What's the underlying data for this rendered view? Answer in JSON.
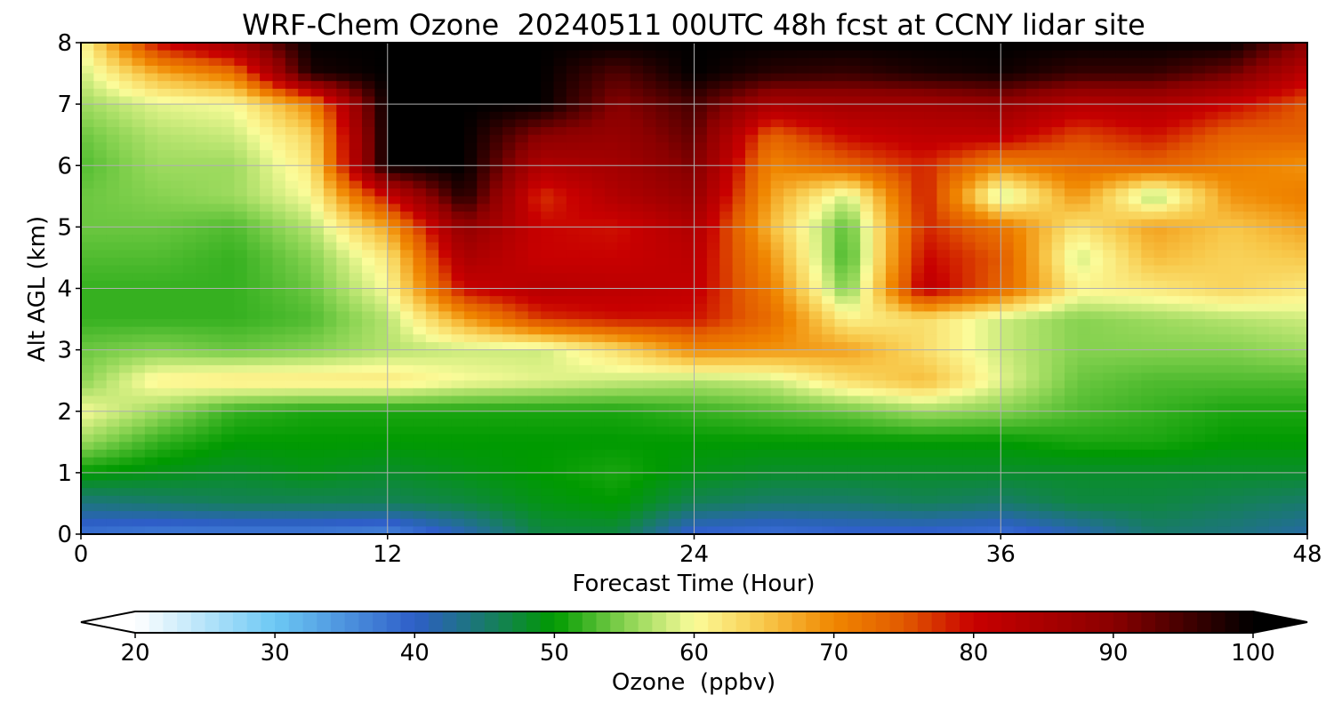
{
  "chart_data": {
    "type": "heatmap",
    "title": "WRF-Chem Ozone  20240511 00UTC 48h fcst at CCNY lidar site",
    "xlabel": "Forecast Time (Hour)",
    "ylabel": "Alt AGL (km)",
    "xlim": [
      0,
      48
    ],
    "ylim": [
      0,
      8
    ],
    "x_ticks": [
      "0",
      "12",
      "24",
      "36",
      "48"
    ],
    "y_ticks": [
      "0",
      "1",
      "2",
      "3",
      "4",
      "5",
      "6",
      "7",
      "8"
    ],
    "grid": true,
    "x_hours": [
      0,
      3,
      6,
      9,
      12,
      15,
      18,
      21,
      24,
      27,
      30,
      33,
      36,
      39,
      42,
      45,
      48
    ],
    "alt_km": [
      0,
      0.5,
      1,
      1.5,
      2,
      2.5,
      3,
      3.5,
      4,
      4.5,
      5,
      5.5,
      6,
      6.5,
      7,
      7.5,
      8
    ],
    "z_ozone_ppbv": [
      [
        38,
        37,
        37,
        37,
        36,
        41,
        47,
        47,
        39,
        38,
        39,
        39,
        38,
        41,
        45,
        44,
        42
      ],
      [
        44,
        45,
        46,
        46,
        46,
        47,
        49,
        50,
        46,
        45,
        45,
        46,
        45,
        47,
        47,
        46,
        45
      ],
      [
        50,
        49,
        48,
        49,
        48,
        49,
        50,
        51,
        49,
        48,
        48,
        48,
        48,
        48,
        48,
        48,
        48
      ],
      [
        56,
        52,
        50,
        50,
        50,
        50,
        50,
        50,
        50,
        50,
        50,
        50,
        50,
        51,
        51,
        50,
        50
      ],
      [
        60,
        56,
        52,
        51,
        51,
        51,
        51,
        51,
        52,
        53,
        54,
        56,
        55,
        53,
        52,
        51,
        51
      ],
      [
        55,
        61,
        62,
        62,
        62,
        60,
        59,
        58,
        57,
        58,
        63,
        66,
        59,
        54,
        53,
        53,
        53
      ],
      [
        54,
        55,
        54,
        55,
        57,
        58,
        58,
        63,
        70,
        69,
        68,
        63,
        58,
        55,
        55,
        55,
        56
      ],
      [
        52,
        52,
        52,
        53,
        57,
        68,
        77,
        79,
        79,
        73,
        61,
        63,
        58,
        55,
        56,
        57,
        58
      ],
      [
        52,
        52,
        52,
        54,
        60,
        80,
        83,
        82,
        81,
        71,
        54,
        82,
        74,
        61,
        62,
        64,
        62
      ],
      [
        53,
        53,
        52,
        55,
        62,
        85,
        80,
        80,
        82,
        69,
        52,
        80,
        75,
        58,
        66,
        64,
        65
      ],
      [
        54,
        54,
        53,
        57,
        68,
        89,
        80,
        79,
        84,
        66,
        53,
        78,
        72,
        62,
        68,
        65,
        68
      ],
      [
        54,
        55,
        56,
        60,
        80,
        98,
        77,
        84,
        88,
        68,
        58,
        79,
        57,
        69,
        56,
        69,
        71
      ],
      [
        53,
        56,
        56,
        62,
        100,
        100,
        84,
        86,
        91,
        70,
        74,
        78,
        70,
        73,
        74,
        71,
        69
      ],
      [
        54,
        57,
        58,
        64,
        100,
        100,
        90,
        88,
        93,
        74,
        80,
        82,
        82,
        76,
        79,
        74,
        74
      ],
      [
        56,
        59,
        60,
        70,
        100,
        100,
        100,
        90,
        95,
        85,
        86,
        86,
        88,
        83,
        84,
        80,
        75
      ],
      [
        58,
        67,
        72,
        98,
        100,
        100,
        100,
        94,
        100,
        97,
        96,
        98,
        99,
        96,
        96,
        92,
        82
      ],
      [
        60,
        80,
        87,
        100,
        100,
        100,
        100,
        100,
        100,
        100,
        100,
        100,
        100,
        100,
        100,
        100,
        90
      ]
    ],
    "colorbar": {
      "label": "Ozone  (ppbv)",
      "min": 20,
      "max": 100,
      "tick_labels": [
        "20",
        "30",
        "40",
        "50",
        "60",
        "70",
        "80",
        "90",
        "100"
      ],
      "extend": "both",
      "color_stops": [
        {
          "v": 20,
          "c": "#ffffff"
        },
        {
          "v": 30,
          "c": "#6cc8f4"
        },
        {
          "v": 40,
          "c": "#2e5ec8"
        },
        {
          "v": 45,
          "c": "#197a6c"
        },
        {
          "v": 50,
          "c": "#009a00"
        },
        {
          "v": 55,
          "c": "#86d250"
        },
        {
          "v": 60,
          "c": "#fbfc9a"
        },
        {
          "v": 65,
          "c": "#f8c84a"
        },
        {
          "v": 70,
          "c": "#f08600"
        },
        {
          "v": 75,
          "c": "#e25a00"
        },
        {
          "v": 80,
          "c": "#c80000"
        },
        {
          "v": 90,
          "c": "#8a0000"
        },
        {
          "v": 100,
          "c": "#000000"
        }
      ]
    }
  }
}
